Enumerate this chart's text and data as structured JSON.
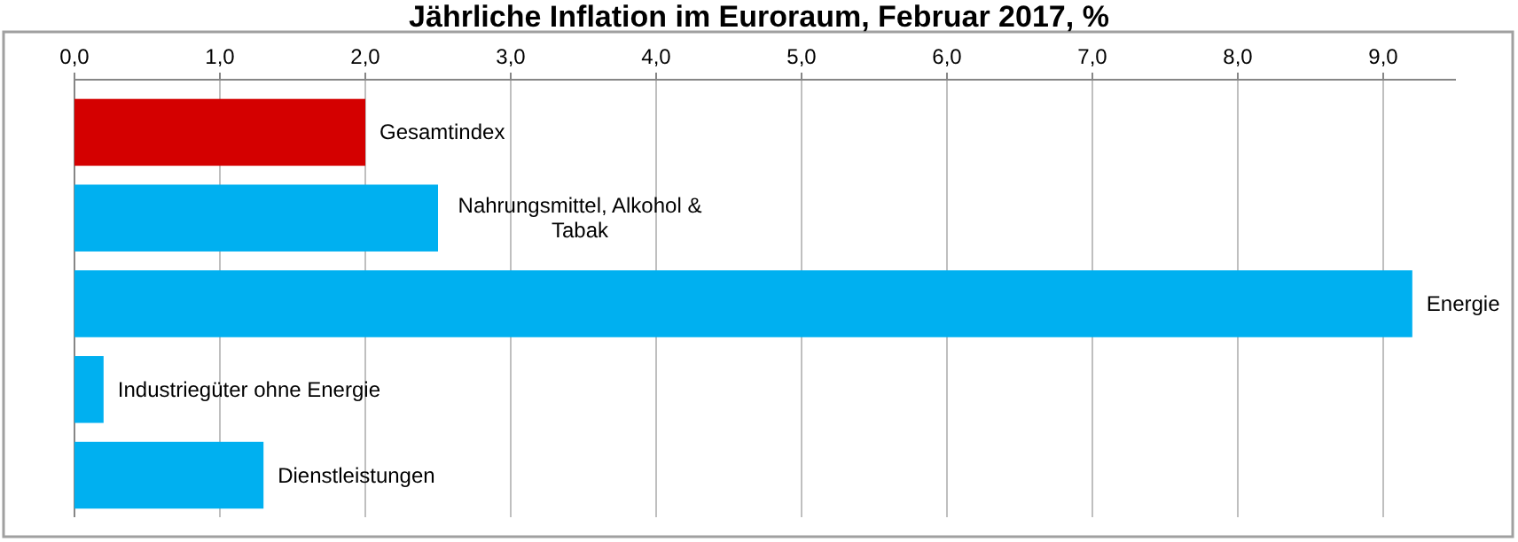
{
  "chart_data": {
    "type": "bar",
    "orientation": "horizontal",
    "title": "Jährliche Inflation im Euroraum, Februar 2017, %",
    "categories": [
      "Gesamtindex",
      "Nahrungsmittel, Alkohol & Tabak",
      "Energie",
      "Industriegüter ohne Energie",
      "Dienstleistungen"
    ],
    "values": [
      2.0,
      2.5,
      9.2,
      0.2,
      1.3
    ],
    "colors": [
      "#d40000",
      "#00b0f0",
      "#00b0f0",
      "#00b0f0",
      "#00b0f0"
    ],
    "xlim": [
      0,
      9.5
    ],
    "xticks": [
      {
        "value": 0,
        "label": "0,0"
      },
      {
        "value": 1,
        "label": "1,0"
      },
      {
        "value": 2,
        "label": "2,0"
      },
      {
        "value": 3,
        "label": "3,0"
      },
      {
        "value": 4,
        "label": "4,0"
      },
      {
        "value": 5,
        "label": "5,0"
      },
      {
        "value": 6,
        "label": "6,0"
      },
      {
        "value": 7,
        "label": "7,0"
      },
      {
        "value": 8,
        "label": "8,0"
      },
      {
        "value": 9,
        "label": "9,0"
      }
    ],
    "grid": "x"
  }
}
